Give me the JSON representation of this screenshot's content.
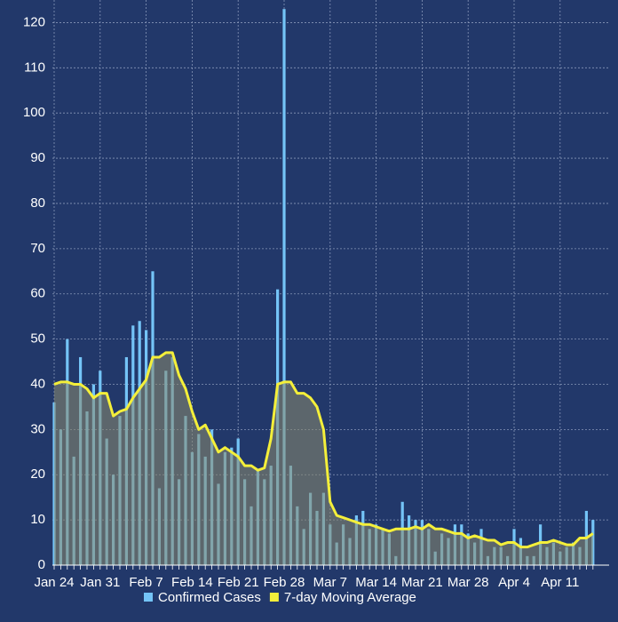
{
  "chart_data": {
    "type": "bar",
    "categories": [
      "Jan 24",
      null,
      null,
      null,
      null,
      null,
      null,
      "Jan 31",
      null,
      null,
      null,
      null,
      null,
      null,
      "Feb 7",
      null,
      null,
      null,
      null,
      null,
      null,
      "Feb 14",
      null,
      null,
      null,
      null,
      null,
      null,
      "Feb 21",
      null,
      null,
      null,
      null,
      null,
      null,
      "Feb 28",
      null,
      null,
      null,
      null,
      null,
      null,
      "Mar 7",
      null,
      null,
      null,
      null,
      null,
      null,
      "Mar 14",
      null,
      null,
      null,
      null,
      null,
      null,
      "Mar 21",
      null,
      null,
      null,
      null,
      null,
      null,
      "Mar 28",
      null,
      null,
      null,
      null,
      null,
      null,
      "Apr 4",
      null,
      null,
      null,
      null,
      null,
      null,
      "Apr 11",
      null,
      null,
      null,
      null,
      null
    ],
    "series": [
      {
        "name": "Confirmed Cases",
        "type": "bar",
        "color": "#74c4f7",
        "values": [
          36,
          30,
          50,
          24,
          46,
          34,
          40,
          43,
          28,
          20,
          33,
          46,
          53,
          54,
          52,
          65,
          17,
          43,
          46,
          19,
          33,
          25,
          29,
          24,
          30,
          18,
          25,
          26,
          28,
          19,
          13,
          21,
          19,
          22,
          61,
          123,
          22,
          13,
          8,
          16,
          12,
          16,
          9,
          5,
          9,
          6,
          11,
          12,
          8,
          9,
          8,
          7,
          2,
          14,
          11,
          10,
          10,
          8,
          3,
          7,
          6,
          9,
          9,
          7,
          5,
          8,
          2,
          4,
          4,
          2,
          8,
          6,
          2,
          2,
          9,
          4,
          5,
          3,
          4,
          5,
          4,
          12,
          10
        ]
      },
      {
        "name": "7-day Moving Average",
        "type": "line",
        "color": "#f4ef3a",
        "values": [
          40,
          40.5,
          40.5,
          40,
          40,
          39,
          37,
          38,
          38,
          33,
          34,
          34.5,
          37,
          39,
          41,
          46,
          46,
          47,
          47,
          42,
          39,
          34,
          30,
          31,
          28,
          25,
          26,
          25,
          24,
          22,
          22,
          21,
          21.5,
          28,
          40,
          40.5,
          40.5,
          38,
          38,
          37,
          35,
          30,
          14,
          11,
          10.5,
          10,
          9.5,
          9,
          9,
          8.5,
          8,
          7.5,
          8,
          8,
          8,
          8.5,
          8,
          9,
          8,
          8,
          7.5,
          7,
          7,
          6,
          6.5,
          6,
          5.5,
          5.5,
          4.5,
          5,
          5,
          4,
          4,
          4.5,
          5,
          5,
          5.5,
          5,
          4.5,
          4.5,
          6,
          6,
          7
        ]
      }
    ],
    "ylim": [
      0,
      125
    ],
    "yticks": [
      0,
      10,
      20,
      30,
      40,
      50,
      60,
      70,
      80,
      90,
      100,
      110,
      120
    ],
    "grid": true
  }
}
